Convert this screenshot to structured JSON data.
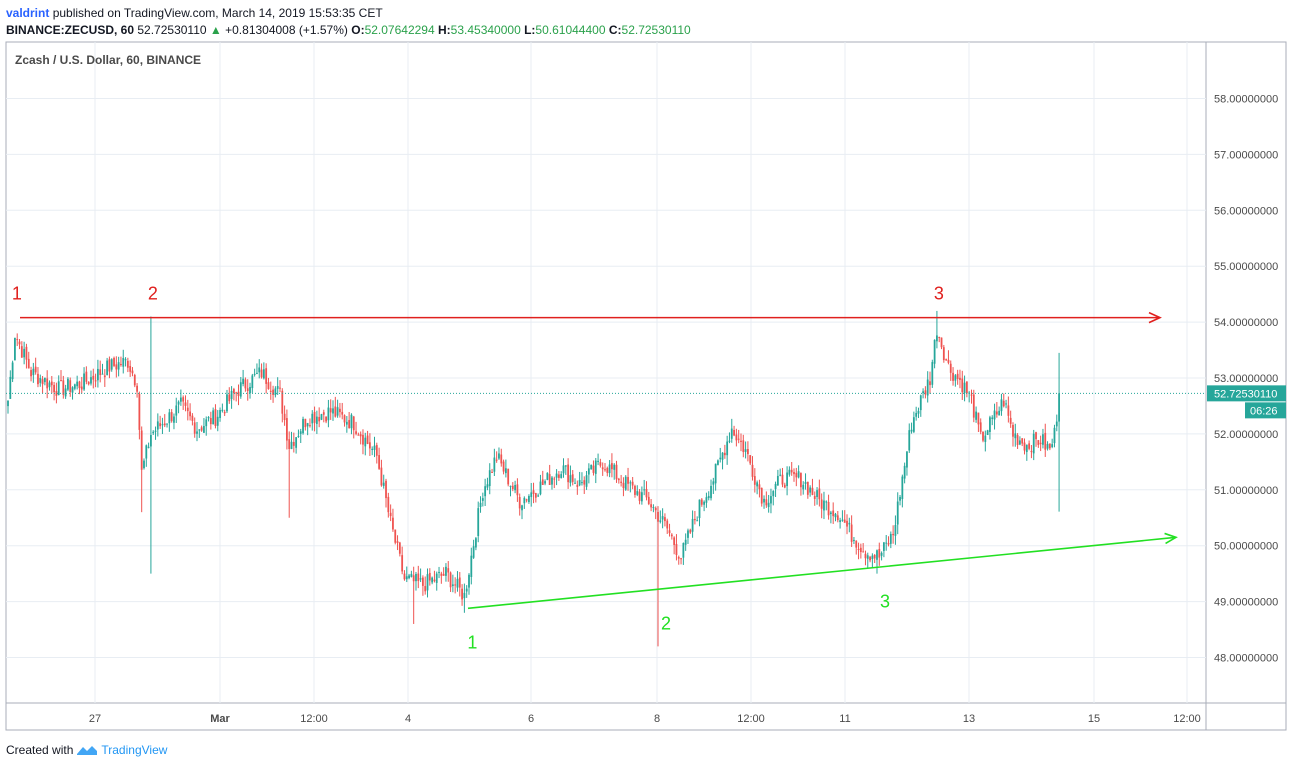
{
  "header": {
    "author": "valdrint",
    "published_text": "published on TradingView.com, March 14, 2019 15:53:35 CET",
    "symbol": "BINANCE:ZECUSD, 60",
    "last": "52.72530110",
    "change_icon": "triangle-up-icon",
    "change": "+0.81304008 (+1.57%)",
    "o_label": "O:",
    "o_value": "52.07642294",
    "h_label": "H:",
    "h_value": "53.45340000",
    "l_label": "L:",
    "l_value": "50.61044400",
    "c_label": "C:",
    "c_value": "52.72530110"
  },
  "footer": {
    "created": "Created with",
    "brand": "TradingView"
  },
  "chart_data": {
    "type": "candlestick",
    "title": "Zcash / U.S. Dollar, 60, BINANCE",
    "ylim": [
      46.8,
      59.0
    ],
    "y_ticks": [
      "48.00000000",
      "49.00000000",
      "50.00000000",
      "51.00000000",
      "52.00000000",
      "53.00000000",
      "54.00000000",
      "55.00000000",
      "56.00000000",
      "57.00000000",
      "58.00000000"
    ],
    "x_ticks": [
      "27",
      "Mar",
      "12:00",
      "4",
      "6",
      "8",
      "12:00",
      "11",
      "13",
      "15",
      "12:00"
    ],
    "x_tick_labels_bold": [
      "Mar"
    ],
    "grid": true,
    "last_price": {
      "label": "52.72530110",
      "countdown": "06:26",
      "value": 52.7253
    },
    "colors": {
      "up": "#26a69a",
      "down": "#ef5350",
      "resistance": "#e0201e",
      "support": "#22e022",
      "grid": "#e8edf3"
    },
    "anchors": [
      {
        "i": 0,
        "p": 52.6
      },
      {
        "i": 3,
        "p": 53.8
      },
      {
        "i": 10,
        "p": 53.1
      },
      {
        "i": 22,
        "p": 52.8
      },
      {
        "i": 32,
        "p": 52.9
      },
      {
        "i": 44,
        "p": 53.2
      },
      {
        "i": 52,
        "p": 53.3
      },
      {
        "i": 56,
        "p": 52.9
      },
      {
        "i": 58,
        "p": 51.3
      },
      {
        "i": 62,
        "p": 52.0
      },
      {
        "i": 75,
        "p": 52.5
      },
      {
        "i": 82,
        "p": 52.1
      },
      {
        "i": 90,
        "p": 52.3
      },
      {
        "i": 100,
        "p": 52.8
      },
      {
        "i": 110,
        "p": 53.1
      },
      {
        "i": 118,
        "p": 52.7
      },
      {
        "i": 122,
        "p": 51.8
      },
      {
        "i": 130,
        "p": 52.3
      },
      {
        "i": 140,
        "p": 52.4
      },
      {
        "i": 150,
        "p": 52.2
      },
      {
        "i": 160,
        "p": 51.6
      },
      {
        "i": 166,
        "p": 50.4
      },
      {
        "i": 172,
        "p": 49.4
      },
      {
        "i": 180,
        "p": 49.3
      },
      {
        "i": 190,
        "p": 49.5
      },
      {
        "i": 198,
        "p": 49.1
      },
      {
        "i": 206,
        "p": 51.0
      },
      {
        "i": 212,
        "p": 51.6
      },
      {
        "i": 222,
        "p": 50.8
      },
      {
        "i": 232,
        "p": 51.1
      },
      {
        "i": 240,
        "p": 51.4
      },
      {
        "i": 248,
        "p": 51.1
      },
      {
        "i": 258,
        "p": 51.5
      },
      {
        "i": 268,
        "p": 51.1
      },
      {
        "i": 278,
        "p": 50.8
      },
      {
        "i": 286,
        "p": 50.3
      },
      {
        "i": 292,
        "p": 49.8
      },
      {
        "i": 300,
        "p": 50.7
      },
      {
        "i": 306,
        "p": 51.2
      },
      {
        "i": 314,
        "p": 52.1
      },
      {
        "i": 320,
        "p": 51.7
      },
      {
        "i": 328,
        "p": 50.8
      },
      {
        "i": 336,
        "p": 51.2
      },
      {
        "i": 344,
        "p": 51.2
      },
      {
        "i": 352,
        "p": 50.8
      },
      {
        "i": 360,
        "p": 50.6
      },
      {
        "i": 366,
        "p": 50.2
      },
      {
        "i": 372,
        "p": 49.9
      },
      {
        "i": 378,
        "p": 49.8
      },
      {
        "i": 384,
        "p": 50.2
      },
      {
        "i": 388,
        "p": 51.2
      },
      {
        "i": 392,
        "p": 52.2
      },
      {
        "i": 396,
        "p": 52.6
      },
      {
        "i": 400,
        "p": 53.0
      },
      {
        "i": 403,
        "p": 53.9
      },
      {
        "i": 408,
        "p": 53.2
      },
      {
        "i": 414,
        "p": 52.9
      },
      {
        "i": 418,
        "p": 52.6
      },
      {
        "i": 422,
        "p": 51.9
      },
      {
        "i": 428,
        "p": 52.3
      },
      {
        "i": 432,
        "p": 52.6
      },
      {
        "i": 436,
        "p": 52.0
      },
      {
        "i": 442,
        "p": 51.8
      },
      {
        "i": 448,
        "p": 51.9
      },
      {
        "i": 452,
        "p": 51.7
      },
      {
        "i": 454,
        "p": 52.0
      },
      {
        "i": 456,
        "p": 52.7
      }
    ],
    "resistance_line": {
      "label_color": "#e0201e",
      "from": {
        "t": 0.0,
        "price": 54.08
      },
      "to": {
        "t": 1.0,
        "price": 54.08
      },
      "touches": [
        {
          "label": "1",
          "candle": 3
        },
        {
          "label": "2",
          "candle": 62
        },
        {
          "label": "3",
          "candle": 403
        }
      ]
    },
    "support_line": {
      "label_color": "#22e022",
      "from": {
        "t": 0.0,
        "price": 48.88
      },
      "to": {
        "t": 1.0,
        "price": 50.15
      },
      "touches": [
        {
          "label": "1",
          "candle": 198
        },
        {
          "label": "2",
          "candle": 282
        },
        {
          "label": "3",
          "candle": 377
        }
      ]
    },
    "wicks": [
      {
        "candle": 58,
        "low": 50.6
      },
      {
        "candle": 62,
        "high": 54.1,
        "low": 49.5
      },
      {
        "candle": 122,
        "low": 50.5
      },
      {
        "candle": 176,
        "low": 48.6
      },
      {
        "candle": 198,
        "low": 48.8
      },
      {
        "candle": 282,
        "low": 48.2
      },
      {
        "candle": 377,
        "low": 49.5
      },
      {
        "candle": 403,
        "high": 54.2
      },
      {
        "candle": 456,
        "high": 53.45,
        "low": 50.61
      }
    ]
  }
}
